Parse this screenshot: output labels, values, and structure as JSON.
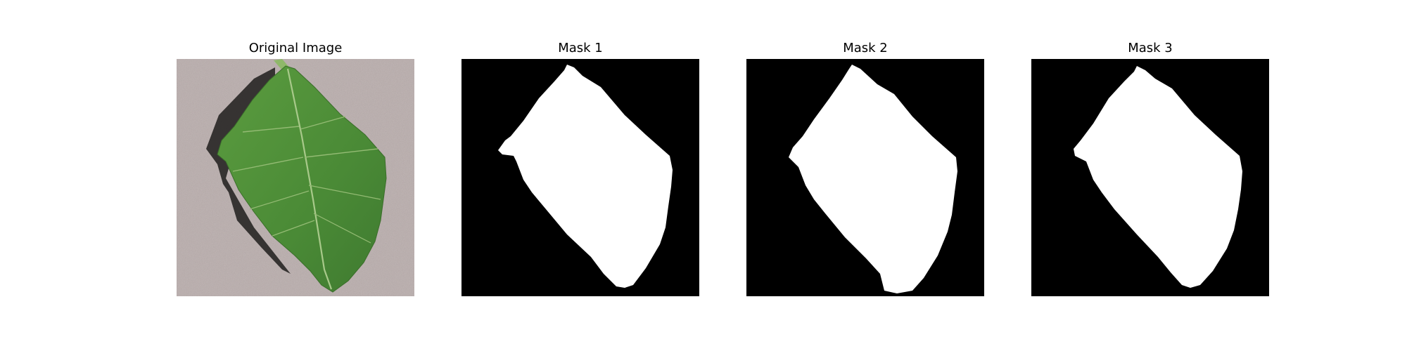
{
  "panels": [
    {
      "title": "Original Image"
    },
    {
      "title": "Mask 1"
    },
    {
      "title": "Mask 2"
    },
    {
      "title": "Mask 3"
    }
  ],
  "colors": {
    "background": "#ffffff",
    "mask_background": "#000000",
    "mask_foreground": "#ffffff",
    "leaf_green": "#4f8f3a",
    "surface_gray": "#b7aaa8"
  }
}
